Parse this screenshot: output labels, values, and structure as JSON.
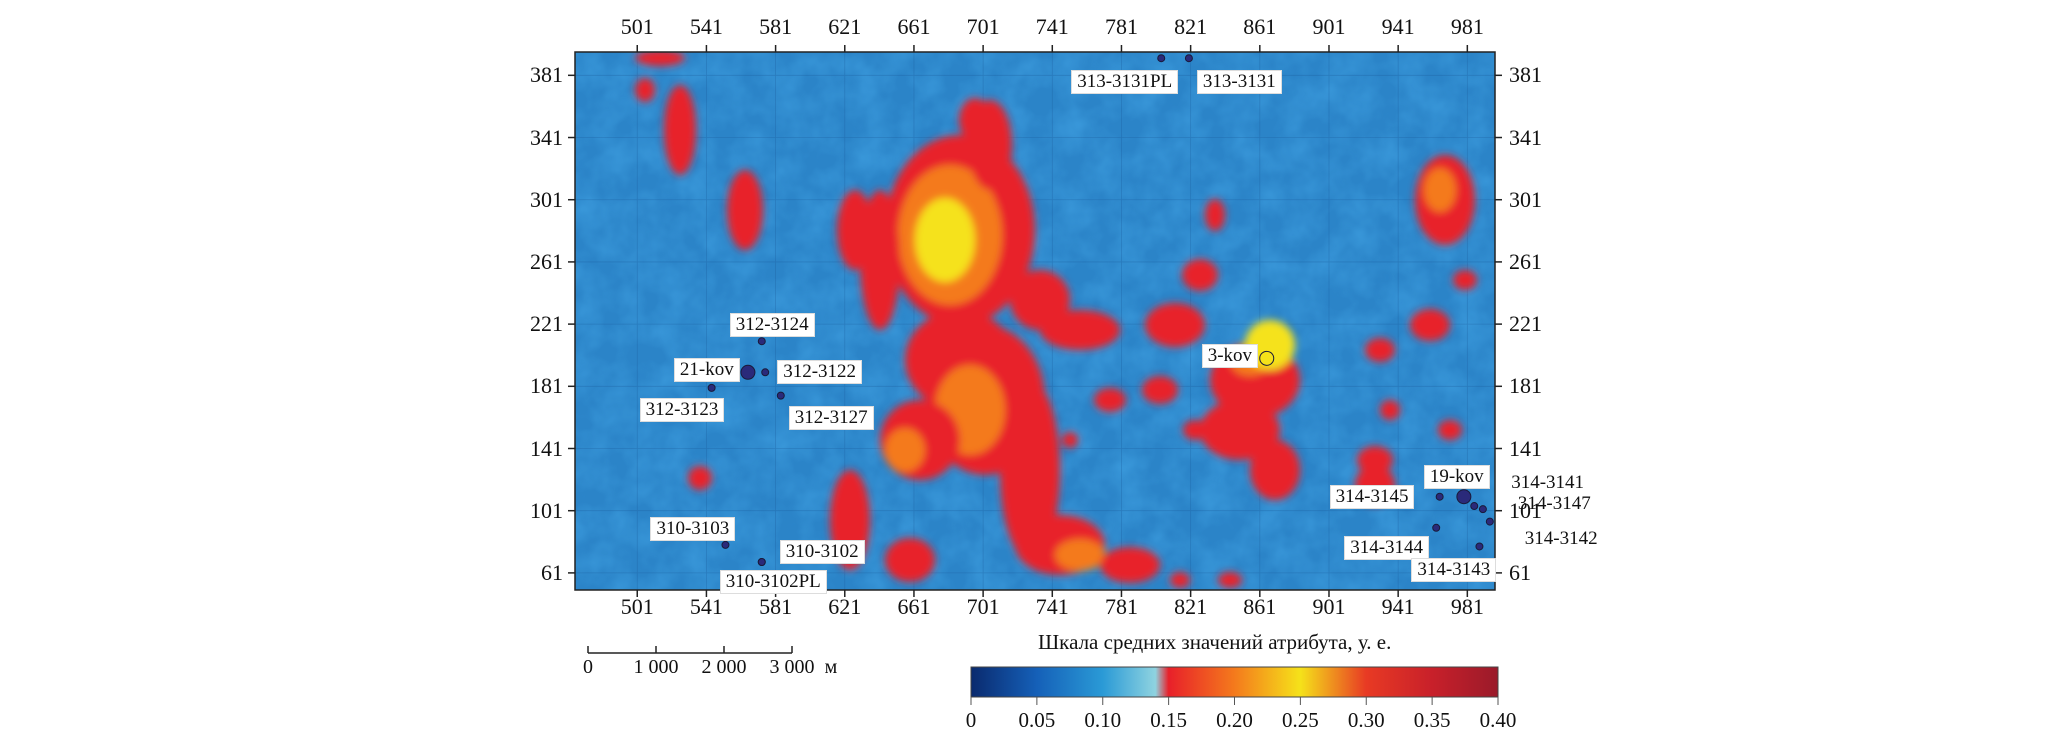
{
  "map": {
    "x_ticks": [
      "501",
      "541",
      "581",
      "621",
      "661",
      "701",
      "741",
      "781",
      "821",
      "861",
      "901",
      "941",
      "981"
    ],
    "y_ticks": [
      "381",
      "341",
      "301",
      "261",
      "221",
      "181",
      "141",
      "101",
      "61"
    ],
    "x_range": [
      465,
      997
    ],
    "y_range": [
      50,
      396
    ],
    "wells": [
      {
        "id": "313-3131PL",
        "x": 804,
        "y": 392,
        "label": "313-3131PL"
      },
      {
        "id": "313-3131",
        "x": 820,
        "y": 392,
        "label": "313-3131"
      },
      {
        "id": "312-3124",
        "x": 573,
        "y": 210,
        "label": "312-3124"
      },
      {
        "id": "21-kov",
        "x": 565,
        "y": 190,
        "label": "21-kov"
      },
      {
        "id": "312-3122",
        "x": 575,
        "y": 190,
        "label": "312-3122"
      },
      {
        "id": "312-3123",
        "x": 544,
        "y": 180,
        "label": "312-3123"
      },
      {
        "id": "312-3127",
        "x": 584,
        "y": 175,
        "label": "312-3127"
      },
      {
        "id": "3-kov",
        "x": 865,
        "y": 199,
        "label": "3-kov"
      },
      {
        "id": "19-kov",
        "x": 979,
        "y": 110,
        "label": "19-kov"
      },
      {
        "id": "314-3141",
        "x": 985,
        "y": 104,
        "label": "314-3141"
      },
      {
        "id": "314-3147",
        "x": 990,
        "y": 102,
        "label": "314-3147"
      },
      {
        "id": "314-3145",
        "x": 965,
        "y": 110,
        "label": "314-3145"
      },
      {
        "id": "314-3142",
        "x": 994,
        "y": 94,
        "label": "314-3142"
      },
      {
        "id": "314-3144",
        "x": 963,
        "y": 90,
        "label": "314-3144"
      },
      {
        "id": "314-3143",
        "x": 988,
        "y": 78,
        "label": "314-3143"
      },
      {
        "id": "310-3103",
        "x": 552,
        "y": 79,
        "label": "310-3103"
      },
      {
        "id": "310-3102",
        "x": 573,
        "y": 68,
        "label": "310-3102"
      },
      {
        "id": "310-3102PL",
        "x": 573,
        "y": 68,
        "label": "310-3102PL"
      }
    ]
  },
  "scalebar": {
    "ticks": [
      "0",
      "1 000",
      "2 000",
      "3 000"
    ],
    "unit": "м"
  },
  "colorbar": {
    "title": "Шкала средних значений атрибута, у. е.",
    "ticks": [
      "0",
      "0.05",
      "0.10",
      "0.15",
      "0.20",
      "0.25",
      "0.30",
      "0.35",
      "0.40"
    ],
    "min": 0,
    "max": 0.4,
    "stops": [
      {
        "v": 0.0,
        "c": "#0a2a6e"
      },
      {
        "v": 0.05,
        "c": "#1560b8"
      },
      {
        "v": 0.1,
        "c": "#2a9ad6"
      },
      {
        "v": 0.14,
        "c": "#8fd3e0"
      },
      {
        "v": 0.15,
        "c": "#e8202a"
      },
      {
        "v": 0.2,
        "c": "#f47a1c"
      },
      {
        "v": 0.25,
        "c": "#f5e21a"
      },
      {
        "v": 0.3,
        "c": "#e83a24"
      },
      {
        "v": 0.35,
        "c": "#c8202a"
      },
      {
        "v": 0.4,
        "c": "#9a1a2a"
      }
    ]
  }
}
